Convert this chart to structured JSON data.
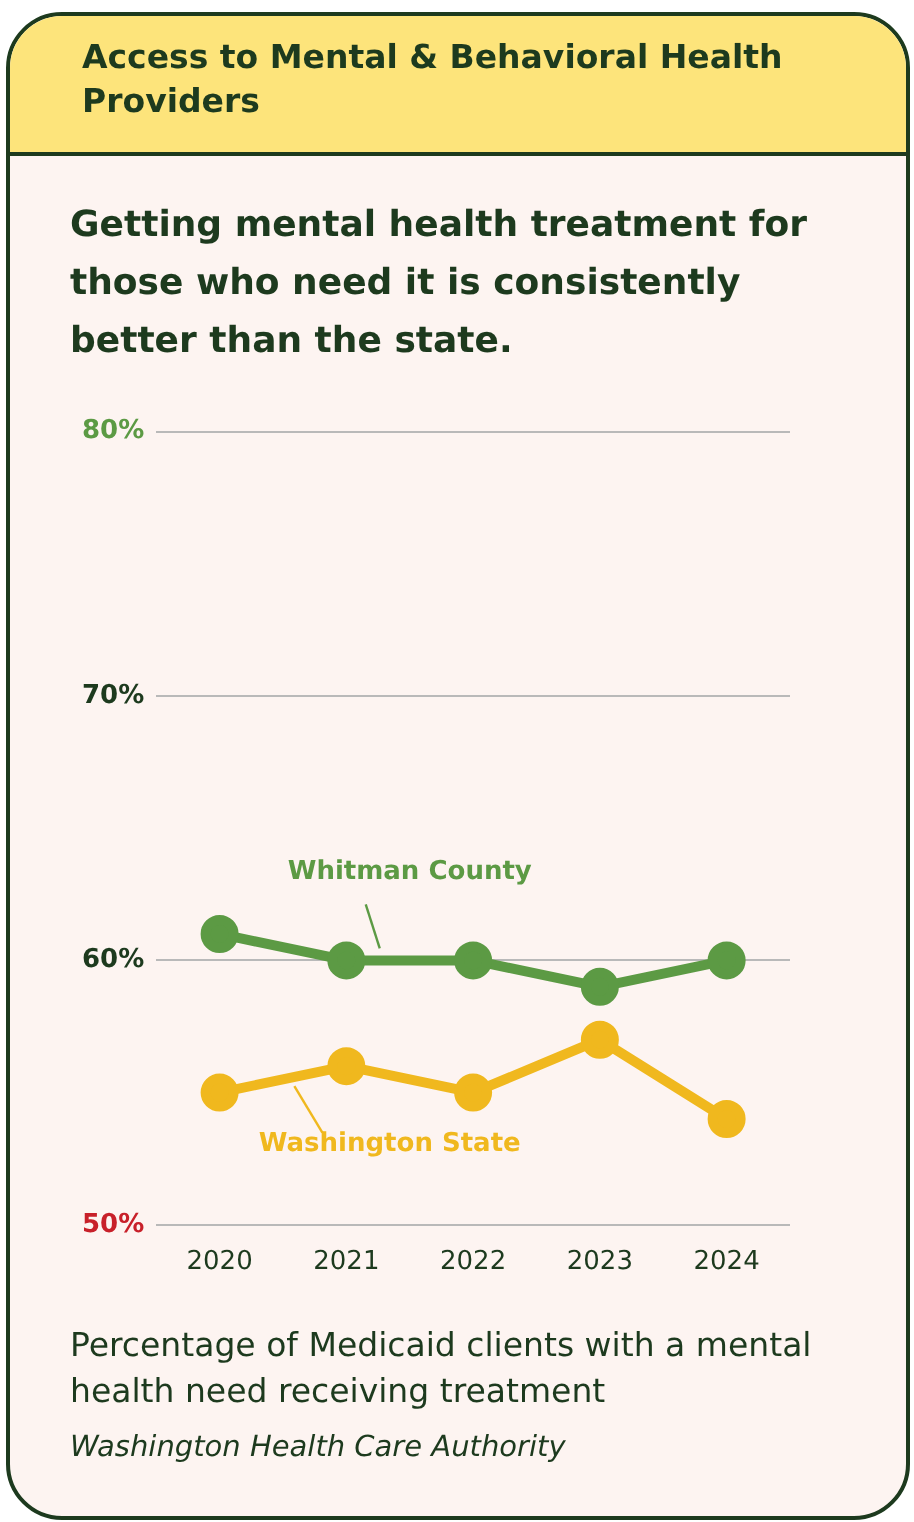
{
  "chart_data": {
    "type": "line",
    "title": "Access to Mental & Behavioral Health Providers",
    "subtitle": "Getting mental health treatment for those who need it is consistently better than the state.",
    "categories": [
      "2020",
      "2021",
      "2022",
      "2023",
      "2024"
    ],
    "series": [
      {
        "name": "Whitman County",
        "color": "#5c9a44",
        "values": [
          61,
          60,
          60,
          59,
          60
        ]
      },
      {
        "name": "Washington State",
        "color": "#f0b81e",
        "values": [
          55,
          56,
          55,
          57,
          54
        ]
      }
    ],
    "ylim": [
      50,
      80
    ],
    "yticks": [
      {
        "value": 50,
        "label": "50%"
      },
      {
        "value": 60,
        "label": "60%"
      },
      {
        "value": 70,
        "label": "70%"
      },
      {
        "value": 80,
        "label": "80%"
      }
    ],
    "grid": "y",
    "marker": "circle",
    "line_style": "solid",
    "annotations": [
      "Percentage of Medicaid clients with a mental health need receiving treatment",
      "Washington Health Care Authority"
    ]
  }
}
